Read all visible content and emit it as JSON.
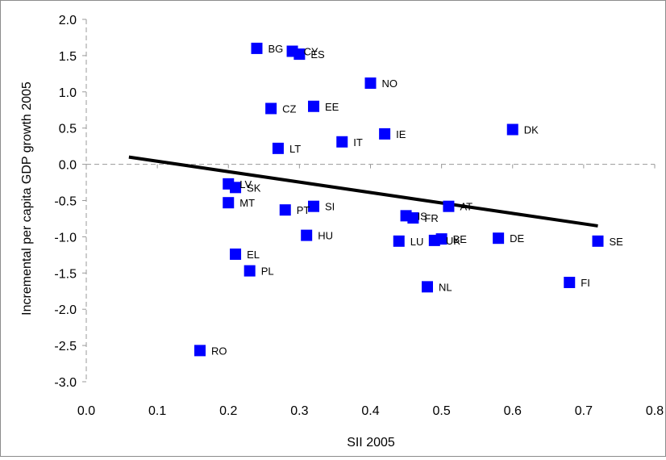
{
  "chart_data": {
    "type": "scatter",
    "xlabel": "SII 2005",
    "ylabel": "Incremental per capita GDP growth 2005",
    "xlim": [
      0.0,
      0.8
    ],
    "ylim": [
      -3.0,
      2.0
    ],
    "xticks": [
      "0.0",
      "0.1",
      "0.2",
      "0.3",
      "0.4",
      "0.5",
      "0.6",
      "0.7",
      "0.8"
    ],
    "yticks": [
      "2.0",
      "1.5",
      "1.0",
      "0.5",
      "0.0",
      "-0.5",
      "-1.0",
      "-1.5",
      "-2.0",
      "-2.5",
      "-3.0"
    ],
    "grid": "dashed zero lines",
    "marker_color": "#0000ff",
    "trend_color": "#000000",
    "trendline": {
      "x": [
        0.06,
        0.72
      ],
      "y": [
        0.1,
        -0.85
      ]
    },
    "points": [
      {
        "label": "BG",
        "x": 0.24,
        "y": 1.6
      },
      {
        "label": "CY",
        "x": 0.29,
        "y": 1.56
      },
      {
        "label": "ES",
        "x": 0.3,
        "y": 1.52
      },
      {
        "label": "NO",
        "x": 0.4,
        "y": 1.12
      },
      {
        "label": "CZ",
        "x": 0.26,
        "y": 0.77
      },
      {
        "label": "EE",
        "x": 0.32,
        "y": 0.8
      },
      {
        "label": "IE",
        "x": 0.42,
        "y": 0.42
      },
      {
        "label": "DK",
        "x": 0.6,
        "y": 0.48
      },
      {
        "label": "IT",
        "x": 0.36,
        "y": 0.31
      },
      {
        "label": "LT",
        "x": 0.27,
        "y": 0.22
      },
      {
        "label": "LV",
        "x": 0.2,
        "y": -0.27
      },
      {
        "label": "SK",
        "x": 0.21,
        "y": -0.32
      },
      {
        "label": "MT",
        "x": 0.2,
        "y": -0.53
      },
      {
        "label": "PT",
        "x": 0.28,
        "y": -0.63
      },
      {
        "label": "SI",
        "x": 0.32,
        "y": -0.58
      },
      {
        "label": "AT",
        "x": 0.51,
        "y": -0.58
      },
      {
        "label": "IS",
        "x": 0.45,
        "y": -0.71
      },
      {
        "label": "FR",
        "x": 0.46,
        "y": -0.74
      },
      {
        "label": "HU",
        "x": 0.31,
        "y": -0.98
      },
      {
        "label": "LU",
        "x": 0.44,
        "y": -1.06
      },
      {
        "label": "UK",
        "x": 0.49,
        "y": -1.05
      },
      {
        "label": "BE",
        "x": 0.5,
        "y": -1.03
      },
      {
        "label": "DE",
        "x": 0.58,
        "y": -1.02
      },
      {
        "label": "SE",
        "x": 0.72,
        "y": -1.06
      },
      {
        "label": "EL",
        "x": 0.21,
        "y": -1.24
      },
      {
        "label": "PL",
        "x": 0.23,
        "y": -1.47
      },
      {
        "label": "NL",
        "x": 0.48,
        "y": -1.69
      },
      {
        "label": "FI",
        "x": 0.68,
        "y": -1.63
      },
      {
        "label": "RO",
        "x": 0.16,
        "y": -2.57
      }
    ]
  }
}
